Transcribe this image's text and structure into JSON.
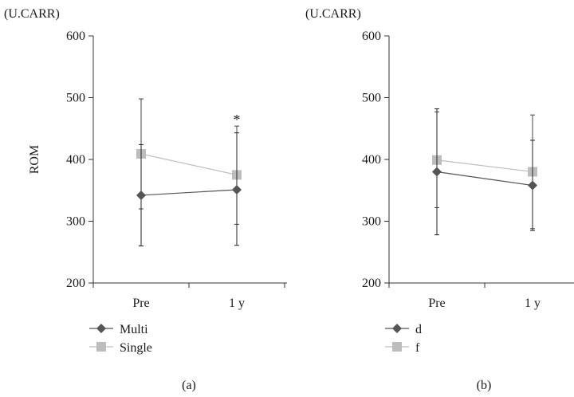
{
  "chart_data": [
    {
      "type": "line",
      "panel_label": "(a)",
      "unit_label": "(U.CARR)",
      "ylabel": "ROM",
      "xlabel": "",
      "categories": [
        "Pre",
        "1 y"
      ],
      "ylim": [
        200,
        600
      ],
      "yticks": [
        200,
        300,
        400,
        500,
        600
      ],
      "grid": false,
      "legend_position": "bottom-left",
      "annotations": [
        {
          "text": "*",
          "category": "1 y"
        }
      ],
      "series": [
        {
          "name": "Multi",
          "marker": "diamond",
          "color": "#555555",
          "values": [
            342,
            351
          ],
          "error_low": [
            260,
            261
          ],
          "error_high": [
            424,
            443
          ]
        },
        {
          "name": "Single",
          "marker": "square",
          "color": "#bdbdbd",
          "values": [
            409,
            375
          ],
          "error_low": [
            320,
            295
          ],
          "error_high": [
            498,
            454
          ]
        }
      ]
    },
    {
      "type": "line",
      "panel_label": "(b)",
      "unit_label": "(U.CARR)",
      "ylabel": "",
      "xlabel": "",
      "categories": [
        "Pre",
        "1 y"
      ],
      "ylim": [
        200,
        600
      ],
      "yticks": [
        200,
        300,
        400,
        500,
        600
      ],
      "grid": false,
      "legend_position": "bottom-left",
      "annotations": [],
      "series": [
        {
          "name": "d",
          "marker": "diamond",
          "color": "#555555",
          "values": [
            380,
            358
          ],
          "error_low": [
            278,
            285
          ],
          "error_high": [
            482,
            431
          ]
        },
        {
          "name": "f",
          "marker": "square",
          "color": "#bdbdbd",
          "values": [
            399,
            380
          ],
          "error_low": [
            322,
            288
          ],
          "error_high": [
            477,
            472
          ]
        }
      ]
    }
  ]
}
